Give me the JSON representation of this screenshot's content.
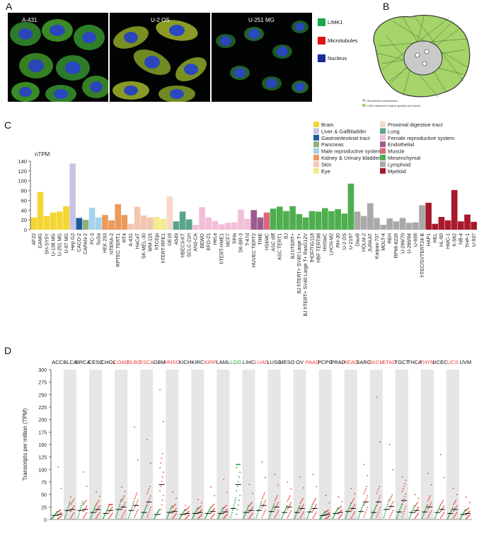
{
  "panels": {
    "a": "A",
    "b": "B",
    "c": "C",
    "d": "D"
  },
  "panel_a": {
    "cell_lines": [
      "A-431",
      "U-2 OS",
      "U-251 MG"
    ],
    "legend": [
      {
        "label": "LIMK1",
        "color": "#1aa84a"
      },
      {
        "label": "Microtubules",
        "color": "#e3101b"
      },
      {
        "label": "Nucleus",
        "color": "#1a2a9c"
      }
    ]
  },
  "panel_b": {
    "legend": [
      {
        "label": "Not detected compartments",
        "color": "#c9c9c9"
      },
      {
        "label": "LIMK1 detected in Nuclear speckles and Cytosol",
        "color": "#a5d46a"
      }
    ]
  },
  "panel_c_legend": [
    {
      "label": "Brain",
      "color": "#f4d633"
    },
    {
      "label": "Liver & Gallbladder",
      "color": "#c9c3e3"
    },
    {
      "label": "Gastrointestinal tract",
      "color": "#1f5a9e"
    },
    {
      "label": "Pancreas",
      "color": "#8fb07a"
    },
    {
      "label": "Male reproductive system",
      "color": "#a5d3ec"
    },
    {
      "label": "Kidney & Urinary bladder",
      "color": "#ec9a5d"
    },
    {
      "label": "Skin",
      "color": "#f2c6b0"
    },
    {
      "label": "Eye",
      "color": "#f2ec8a"
    },
    {
      "label": "Proximal digestive tract",
      "color": "#f6d9c6"
    },
    {
      "label": "Lung",
      "color": "#5aa38c"
    },
    {
      "label": "Female reproductive system",
      "color": "#f2bfd8"
    },
    {
      "label": "Endothelial",
      "color": "#9d5a8e"
    },
    {
      "label": "Muscle",
      "color": "#d96a7a"
    },
    {
      "label": "Mesenchymal",
      "color": "#4fae4f"
    },
    {
      "label": "Lymphoid",
      "color": "#a9a9a9"
    },
    {
      "label": "Myeloid",
      "color": "#a8192b"
    }
  ],
  "chart_data": [
    {
      "type": "bar",
      "ylabel": "nTPM",
      "ylim": [
        0,
        140
      ],
      "yticks": [
        0,
        20,
        40,
        60,
        80,
        100,
        120,
        140
      ],
      "categories": [
        "AF22",
        "GAMG",
        "SH-SY5Y",
        "U-138 MG",
        "U-251 MG",
        "U-87 MG",
        "Hep G2",
        "CACO-2",
        "CAPAN-2",
        "PC-3",
        "SuSa",
        "HEK 293",
        "NTERA-2",
        "RPTEC TERT1",
        "RT4",
        "A-431",
        "HaCaT",
        "SK-MEL-30",
        "WM-115",
        "hTCEpi",
        "hTERT-RPE1",
        "OE19",
        "A549",
        "HBEC3-KT",
        "SCLC-21H",
        "AN3-CA",
        "BEWO",
        "EFO-21",
        "HeLa",
        "hTERT-HME1",
        "MCF7",
        "SiHa",
        "SK-BR-3",
        "T-47d",
        "HUVEC TERT2",
        "TIME",
        "HSkMC",
        "ASC diff",
        "ASC TERT1",
        "BJ",
        "BJ hTERT+",
        "BJ hTERT+ SV40 Large T+",
        "BJ hTERT+ SV40 Large T+ RasG12V",
        "fHDF/TIG118",
        "HBF TERT88",
        "HHSteC",
        "LHCN-M2",
        "RH-30",
        "U-2 OS",
        "U-2197",
        "Daudi",
        "HDLM-2",
        "JURKAT",
        "Karpas-707",
        "MOLT-4",
        "REH",
        "RPMI-8226",
        "U-266/70",
        "U-266/84",
        "U-698",
        "hTEC/SVTERT24-B",
        "HAP1",
        "HEL",
        "HL-60",
        "HMC-1",
        "K-562",
        "NB-4",
        "THP-1",
        "U-937"
      ],
      "values": [
        25,
        77,
        28,
        35,
        37,
        48,
        135,
        24,
        20,
        45,
        25,
        30,
        19,
        52,
        30,
        12,
        47,
        29,
        25,
        26,
        22,
        68,
        17,
        37,
        21,
        10,
        46,
        25,
        18,
        11,
        14,
        15,
        41,
        22,
        40,
        25,
        35,
        43,
        47,
        38,
        48,
        32,
        25,
        38,
        37,
        44,
        38,
        42,
        33,
        94,
        37,
        28,
        54,
        24,
        10,
        23,
        17,
        24,
        14,
        15,
        50,
        55,
        12,
        26,
        19,
        81,
        17,
        31,
        16
      ],
      "group": [
        "Brain",
        "Brain",
        "Brain",
        "Brain",
        "Brain",
        "Brain",
        "Liver & Gallbladder",
        "Gastrointestinal tract",
        "Pancreas",
        "Male reproductive system",
        "Male reproductive system",
        "Kidney & Urinary bladder",
        "Kidney & Urinary bladder",
        "Kidney & Urinary bladder",
        "Kidney & Urinary bladder",
        "Skin",
        "Skin",
        "Skin",
        "Skin",
        "Eye",
        "Eye",
        "Proximal digestive tract",
        "Lung",
        "Lung",
        "Lung",
        "Female reproductive system",
        "Female reproductive system",
        "Female reproductive system",
        "Female reproductive system",
        "Female reproductive system",
        "Female reproductive system",
        "Female reproductive system",
        "Female reproductive system",
        "Female reproductive system",
        "Endothelial",
        "Endothelial",
        "Muscle",
        "Mesenchymal",
        "Mesenchymal",
        "Mesenchymal",
        "Mesenchymal",
        "Mesenchymal",
        "Mesenchymal",
        "Mesenchymal",
        "Mesenchymal",
        "Mesenchymal",
        "Mesenchymal",
        "Mesenchymal",
        "Mesenchymal",
        "Mesenchymal",
        "Lymphoid",
        "Lymphoid",
        "Lymphoid",
        "Lymphoid",
        "Lymphoid",
        "Lymphoid",
        "Lymphoid",
        "Lymphoid",
        "Lymphoid",
        "Lymphoid",
        "Lymphoid",
        "Myeloid",
        "Myeloid",
        "Myeloid",
        "Myeloid",
        "Myeloid",
        "Myeloid",
        "Myeloid",
        "Myeloid"
      ]
    },
    {
      "type": "scatter",
      "ylabel": "Transcripts per million (TPM)",
      "ylim": [
        0,
        300
      ],
      "yticks": [
        0,
        25,
        50,
        75,
        100,
        125,
        150,
        175,
        200,
        225,
        250,
        275,
        300
      ],
      "categories": [
        "ACC",
        "BLCA",
        "BRCA",
        "CESC",
        "CHOL",
        "COAD",
        "DLBC",
        "ESCA",
        "GBM",
        "HNSC",
        "KICH",
        "KIRC",
        "KIRP",
        "LAML",
        "LGG",
        "LIHC",
        "LUAD",
        "LUSC",
        "MESO",
        "OV",
        "PAAD",
        "PCPG",
        "PRAD",
        "READ",
        "SARC",
        "SKCM",
        "STAD",
        "TGCT",
        "THCA",
        "THYM",
        "UCEC",
        "UCS",
        "UVM"
      ],
      "category_colors": [
        "#111111",
        "#111111",
        "#111111",
        "#111111",
        "#111111",
        "#e8413c",
        "#e8413c",
        "#e8413c",
        "#111111",
        "#e8413c",
        "#111111",
        "#111111",
        "#e8413c",
        "#111111",
        "#22a33a",
        "#111111",
        "#e8413c",
        "#111111",
        "#111111",
        "#111111",
        "#e8413c",
        "#111111",
        "#111111",
        "#e8413c",
        "#111111",
        "#e8413c",
        "#e8413c",
        "#111111",
        "#111111",
        "#e8413c",
        "#111111",
        "#e8413c",
        "#111111"
      ],
      "tumor_median": [
        10,
        20,
        20,
        20,
        18,
        25,
        28,
        35,
        70,
        16,
        12,
        14,
        16,
        15,
        70,
        18,
        28,
        25,
        25,
        22,
        22,
        10,
        14,
        22,
        35,
        35,
        26,
        38,
        18,
        25,
        20,
        20,
        12
      ],
      "normal_median": [
        8,
        18,
        18,
        14,
        12,
        20,
        18,
        14,
        10,
        14,
        10,
        12,
        12,
        12,
        22,
        14,
        18,
        16,
        14,
        14,
        15,
        8,
        12,
        16,
        16,
        14,
        20,
        15,
        14,
        15,
        14,
        12,
        10
      ],
      "tumor_max": [
        105,
        45,
        95,
        55,
        30,
        65,
        185,
        160,
        260,
        55,
        28,
        40,
        65,
        80,
        110,
        70,
        115,
        90,
        75,
        85,
        90,
        48,
        45,
        62,
        110,
        245,
        150,
        85,
        50,
        92,
        130,
        62,
        45
      ],
      "normal_color": "#1e9e3a",
      "tumor_color": "#e8413c",
      "median_color": "#111111"
    }
  ]
}
